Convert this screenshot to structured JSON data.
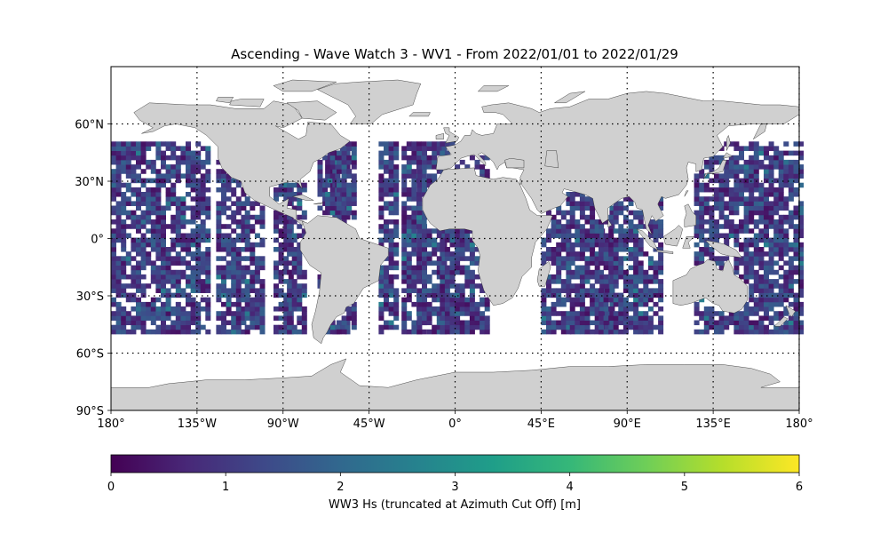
{
  "figure": {
    "title": "Ascending - Wave Watch 3 - WV1 - From 2022/01/01 to 2022/01/29"
  },
  "map": {
    "projection": "PlateCarree",
    "extent": {
      "lon": [
        -180,
        180
      ],
      "lat": [
        -90,
        90
      ]
    },
    "gridlines": {
      "style": "dotted",
      "lons": [
        -135,
        -90,
        -45,
        0,
        45,
        90,
        135,
        180
      ],
      "lats": [
        -60,
        -30,
        0,
        30,
        60
      ]
    },
    "x_tick_labels": [
      {
        "lon": -180,
        "label": "180°"
      },
      {
        "lon": -135,
        "label": "135°W"
      },
      {
        "lon": -90,
        "label": "90°W"
      },
      {
        "lon": -45,
        "label": "45°W"
      },
      {
        "lon": 0,
        "label": "0°"
      },
      {
        "lon": 45,
        "label": "45°E"
      },
      {
        "lon": 90,
        "label": "90°E"
      },
      {
        "lon": 135,
        "label": "135°E"
      },
      {
        "lon": 180,
        "label": "180°"
      }
    ],
    "y_tick_labels": [
      {
        "lat": 60,
        "label": "60°N"
      },
      {
        "lat": 30,
        "label": "30°N"
      },
      {
        "lat": 0,
        "label": "0°"
      },
      {
        "lat": -30,
        "label": "30°S"
      },
      {
        "lat": -60,
        "label": "60°S"
      },
      {
        "lat": -90,
        "label": "90°S"
      }
    ],
    "land_color": "#d0d0d0",
    "data_lat_range": [
      -50,
      50
    ],
    "colormap": "viridis"
  },
  "chart_data": {
    "type": "heatmap",
    "title": "Ascending - Wave Watch 3 - WV1 - From 2022/01/01 to 2022/01/29",
    "variable": "WW3 Hs (truncated at Azimuth Cut Off) [m]",
    "vmin": 0,
    "vmax": 6,
    "data_lat_range": [
      -50,
      50
    ],
    "typical_value_range": [
      0.2,
      2.5
    ],
    "swath_lon_bands": [
      [
        -180,
        -130
      ],
      [
        -125,
        -110
      ],
      [
        -110,
        -100
      ],
      [
        -95,
        -85
      ],
      [
        -88,
        -78
      ],
      [
        -72,
        -62
      ],
      [
        -68,
        -55
      ],
      [
        -62,
        -52
      ],
      [
        -40,
        -30
      ],
      [
        -28,
        -15
      ],
      [
        -20,
        -5
      ],
      [
        -8,
        18
      ],
      [
        45,
        60
      ],
      [
        60,
        82
      ],
      [
        75,
        107
      ],
      [
        125,
        180
      ]
    ]
  },
  "colorbar": {
    "label": "WW3 Hs (truncated at Azimuth Cut Off) [m]",
    "ticks": [
      "0",
      "1",
      "2",
      "3",
      "4",
      "5",
      "6"
    ],
    "colormap": "viridis"
  }
}
